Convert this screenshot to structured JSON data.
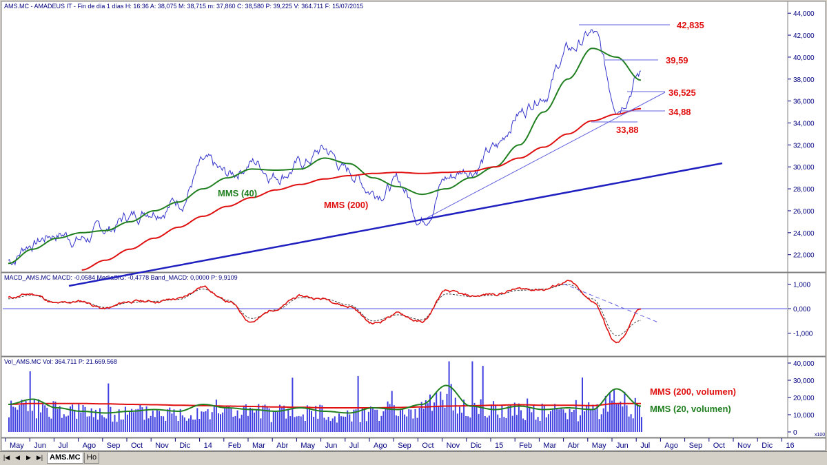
{
  "panels": {
    "price": {
      "header": "AMS.MC - AMADEUS IT - Fin de día 1 días  H: 16:36  A: 38,075  M: 38,715  m: 37,860  C: 38,580  P: 39,225  V: 364.711  F: 15/07/2015",
      "y_ticks": [
        "22,000",
        "24,000",
        "26,000",
        "28,000",
        "30,000",
        "32,000",
        "34,000",
        "36,000",
        "38,000",
        "40,000",
        "42,000",
        "44,000"
      ],
      "y_tick_values": [
        22,
        24,
        26,
        28,
        30,
        32,
        34,
        36,
        38,
        40,
        42,
        44
      ],
      "ylim": [
        20.6,
        44.2
      ]
    },
    "macd": {
      "header": "MACD_AMS.MC  MACD: -0,0584  MediaSIG: -0,4778  Band_MACD: 0,0000  P: 9,9109",
      "y_ticks": [
        "1,000",
        "0,000",
        "-1,000"
      ],
      "y_tick_values": [
        1,
        0,
        -1
      ],
      "ylim": [
        -1.85,
        1.35
      ]
    },
    "volume": {
      "header": "Vol_AMS.MC  Vol: 364.711  P: 21.669.568",
      "y_ticks": [
        "0",
        "10,000",
        "20,000",
        "30,000",
        "40,000"
      ],
      "y_tick_values": [
        0,
        10,
        20,
        30,
        40
      ],
      "ylim": [
        -2,
        42
      ],
      "corner_label": "x100"
    }
  },
  "x_axis": {
    "labels": [
      "May",
      "Jun",
      "Jul",
      "Ago",
      "Sep",
      "Oct",
      "Nov",
      "Dic",
      "14",
      "Feb",
      "Mar",
      "Abr",
      "May",
      "Jun",
      "Jul",
      "Ago",
      "Sep",
      "Oct",
      "Nov",
      "Dic",
      "15",
      "Feb",
      "Mar",
      "Abr",
      "May",
      "Jun",
      "Jul",
      "Ago",
      "Sep",
      "Oct",
      "Nov",
      "Dic",
      "16"
    ]
  },
  "annotations": {
    "price_levels": [
      "42,835",
      "39,59",
      "36,525",
      "34,88",
      "33,88"
    ],
    "ma40": "MMS (40)",
    "ma200": "MMS (200)",
    "vol_ma200": "MMS (200, volumen)",
    "vol_ma20": "MMS (20, volumen)"
  },
  "tabs": {
    "active": "AMS.MC",
    "other": "Ho"
  },
  "colors": {
    "price": "#3333cc",
    "ma40": "#208020",
    "ma200": "#e01010",
    "trend": "#2020c0",
    "volume": "#4040e0",
    "label_red": "#e01010",
    "label_green": "#208020",
    "axis_text": "#000080"
  },
  "chart_data": [
    {
      "type": "line",
      "title": "AMS.MC - AMADEUS IT",
      "x": [
        "2013-05",
        "2013-06",
        "2013-07",
        "2013-08",
        "2013-09",
        "2013-10",
        "2013-11",
        "2013-12",
        "2014-01",
        "2014-02",
        "2014-03",
        "2014-04",
        "2014-05",
        "2014-06",
        "2014-07",
        "2014-08",
        "2014-09",
        "2014-10",
        "2014-11",
        "2014-12",
        "2015-01",
        "2015-02",
        "2015-03",
        "2015-04",
        "2015-05",
        "2015-06",
        "2015-07"
      ],
      "series": [
        {
          "name": "",
          "values": [
            21.5,
            23.2,
            24.0,
            23.5,
            24.2,
            25.5,
            26.5,
            27.0,
            30.0,
            29.0,
            30.5,
            29.5,
            30.2,
            31.5,
            29.5,
            28.0,
            28.5,
            25.5,
            29.0,
            30.0,
            31.5,
            35.0,
            37.0,
            40.5,
            42.0,
            36.0,
            38.6
          ]
        },
        {
          "name": "MMS (40)",
          "values": [
            21.2,
            22.5,
            23.5,
            24.0,
            24.2,
            25.0,
            26.0,
            26.8,
            28.0,
            29.0,
            29.8,
            29.7,
            29.8,
            30.8,
            30.3,
            29.0,
            28.2,
            27.5,
            28.0,
            29.0,
            30.0,
            32.0,
            35.0,
            38.0,
            40.8,
            40.0,
            37.9
          ]
        },
        {
          "name": "MMS (200)",
          "values": [
            null,
            null,
            null,
            20.6,
            21.5,
            22.5,
            23.5,
            24.5,
            25.5,
            26.4,
            27.2,
            27.9,
            28.4,
            28.9,
            29.2,
            29.4,
            29.5,
            29.4,
            29.5,
            29.6,
            30.0,
            30.8,
            31.8,
            33.0,
            34.2,
            34.8,
            35.3
          ]
        }
      ],
      "ylim": [
        20.6,
        44.2
      ]
    },
    {
      "type": "line",
      "title": "",
      "x": [
        "2013-05",
        "2013-06",
        "2013-07",
        "2013-08",
        "2013-09",
        "2013-10",
        "2013-11",
        "2013-12",
        "2014-01",
        "2014-02",
        "2014-03",
        "2014-04",
        "2014-05",
        "2014-06",
        "2014-07",
        "2014-08",
        "2014-09",
        "2014-10",
        "2014-11",
        "2014-12",
        "2015-01",
        "2015-02",
        "2015-03",
        "2015-04",
        "2015-05",
        "2015-06",
        "2015-07"
      ],
      "series": [
        {
          "name": "MACD",
          "values": [
            0.45,
            0.6,
            0.2,
            0.3,
            0.0,
            0.3,
            0.3,
            0.4,
            0.9,
            0.3,
            -0.5,
            0.0,
            0.5,
            0.4,
            0.1,
            -0.6,
            -0.2,
            -0.55,
            0.7,
            0.5,
            0.6,
            0.8,
            0.8,
            1.1,
            0.3,
            -1.4,
            -0.06
          ]
        },
        {
          "name": "MediaSIG",
          "values": [
            0.4,
            0.55,
            0.25,
            0.28,
            0.05,
            0.25,
            0.3,
            0.38,
            0.8,
            0.35,
            -0.4,
            -0.05,
            0.45,
            0.4,
            0.15,
            -0.5,
            -0.25,
            -0.45,
            0.6,
            0.5,
            0.55,
            0.75,
            0.8,
            1.0,
            0.4,
            -1.1,
            -0.48
          ]
        }
      ],
      "ylim": [
        -1.85,
        1.35
      ]
    },
    {
      "type": "bar",
      "title": "",
      "x": [
        "2013-05",
        "2013-06",
        "2013-07",
        "2013-08",
        "2013-09",
        "2013-10",
        "2013-11",
        "2013-12",
        "2014-01",
        "2014-02",
        "2014-03",
        "2014-04",
        "2014-05",
        "2014-06",
        "2014-07",
        "2014-08",
        "2014-09",
        "2014-10",
        "2014-11",
        "2014-12",
        "2015-01",
        "2015-02",
        "2015-03",
        "2015-04",
        "2015-05",
        "2015-06",
        "2015-07"
      ],
      "series": [
        {
          "name": "",
          "values": [
            15,
            16,
            14,
            12,
            11,
            12,
            13,
            12,
            15,
            14,
            13,
            12,
            13,
            12,
            11,
            14,
            13,
            16,
            22,
            16,
            14,
            15,
            13,
            14,
            13,
            20,
            15
          ]
        },
        {
          "name": "MMS (200, volumen)",
          "values": [
            16,
            16.5,
            16.5,
            16.5,
            16.3,
            16,
            15.8,
            15.5,
            15.3,
            15,
            14.8,
            14.5,
            14.3,
            14,
            14,
            14,
            14.2,
            14.5,
            15,
            15.2,
            15.5,
            15.8,
            15.5,
            15.5,
            15.3,
            16.5,
            16.5
          ]
        },
        {
          "name": "MMS (20, volumen)",
          "values": [
            16,
            19,
            14,
            12,
            11,
            12,
            13,
            12,
            16,
            14,
            13,
            12,
            14,
            12,
            11,
            14,
            13,
            16,
            27,
            15,
            13,
            15,
            13,
            14,
            13,
            25,
            15
          ]
        }
      ],
      "ylim": [
        -2,
        42
      ]
    }
  ]
}
